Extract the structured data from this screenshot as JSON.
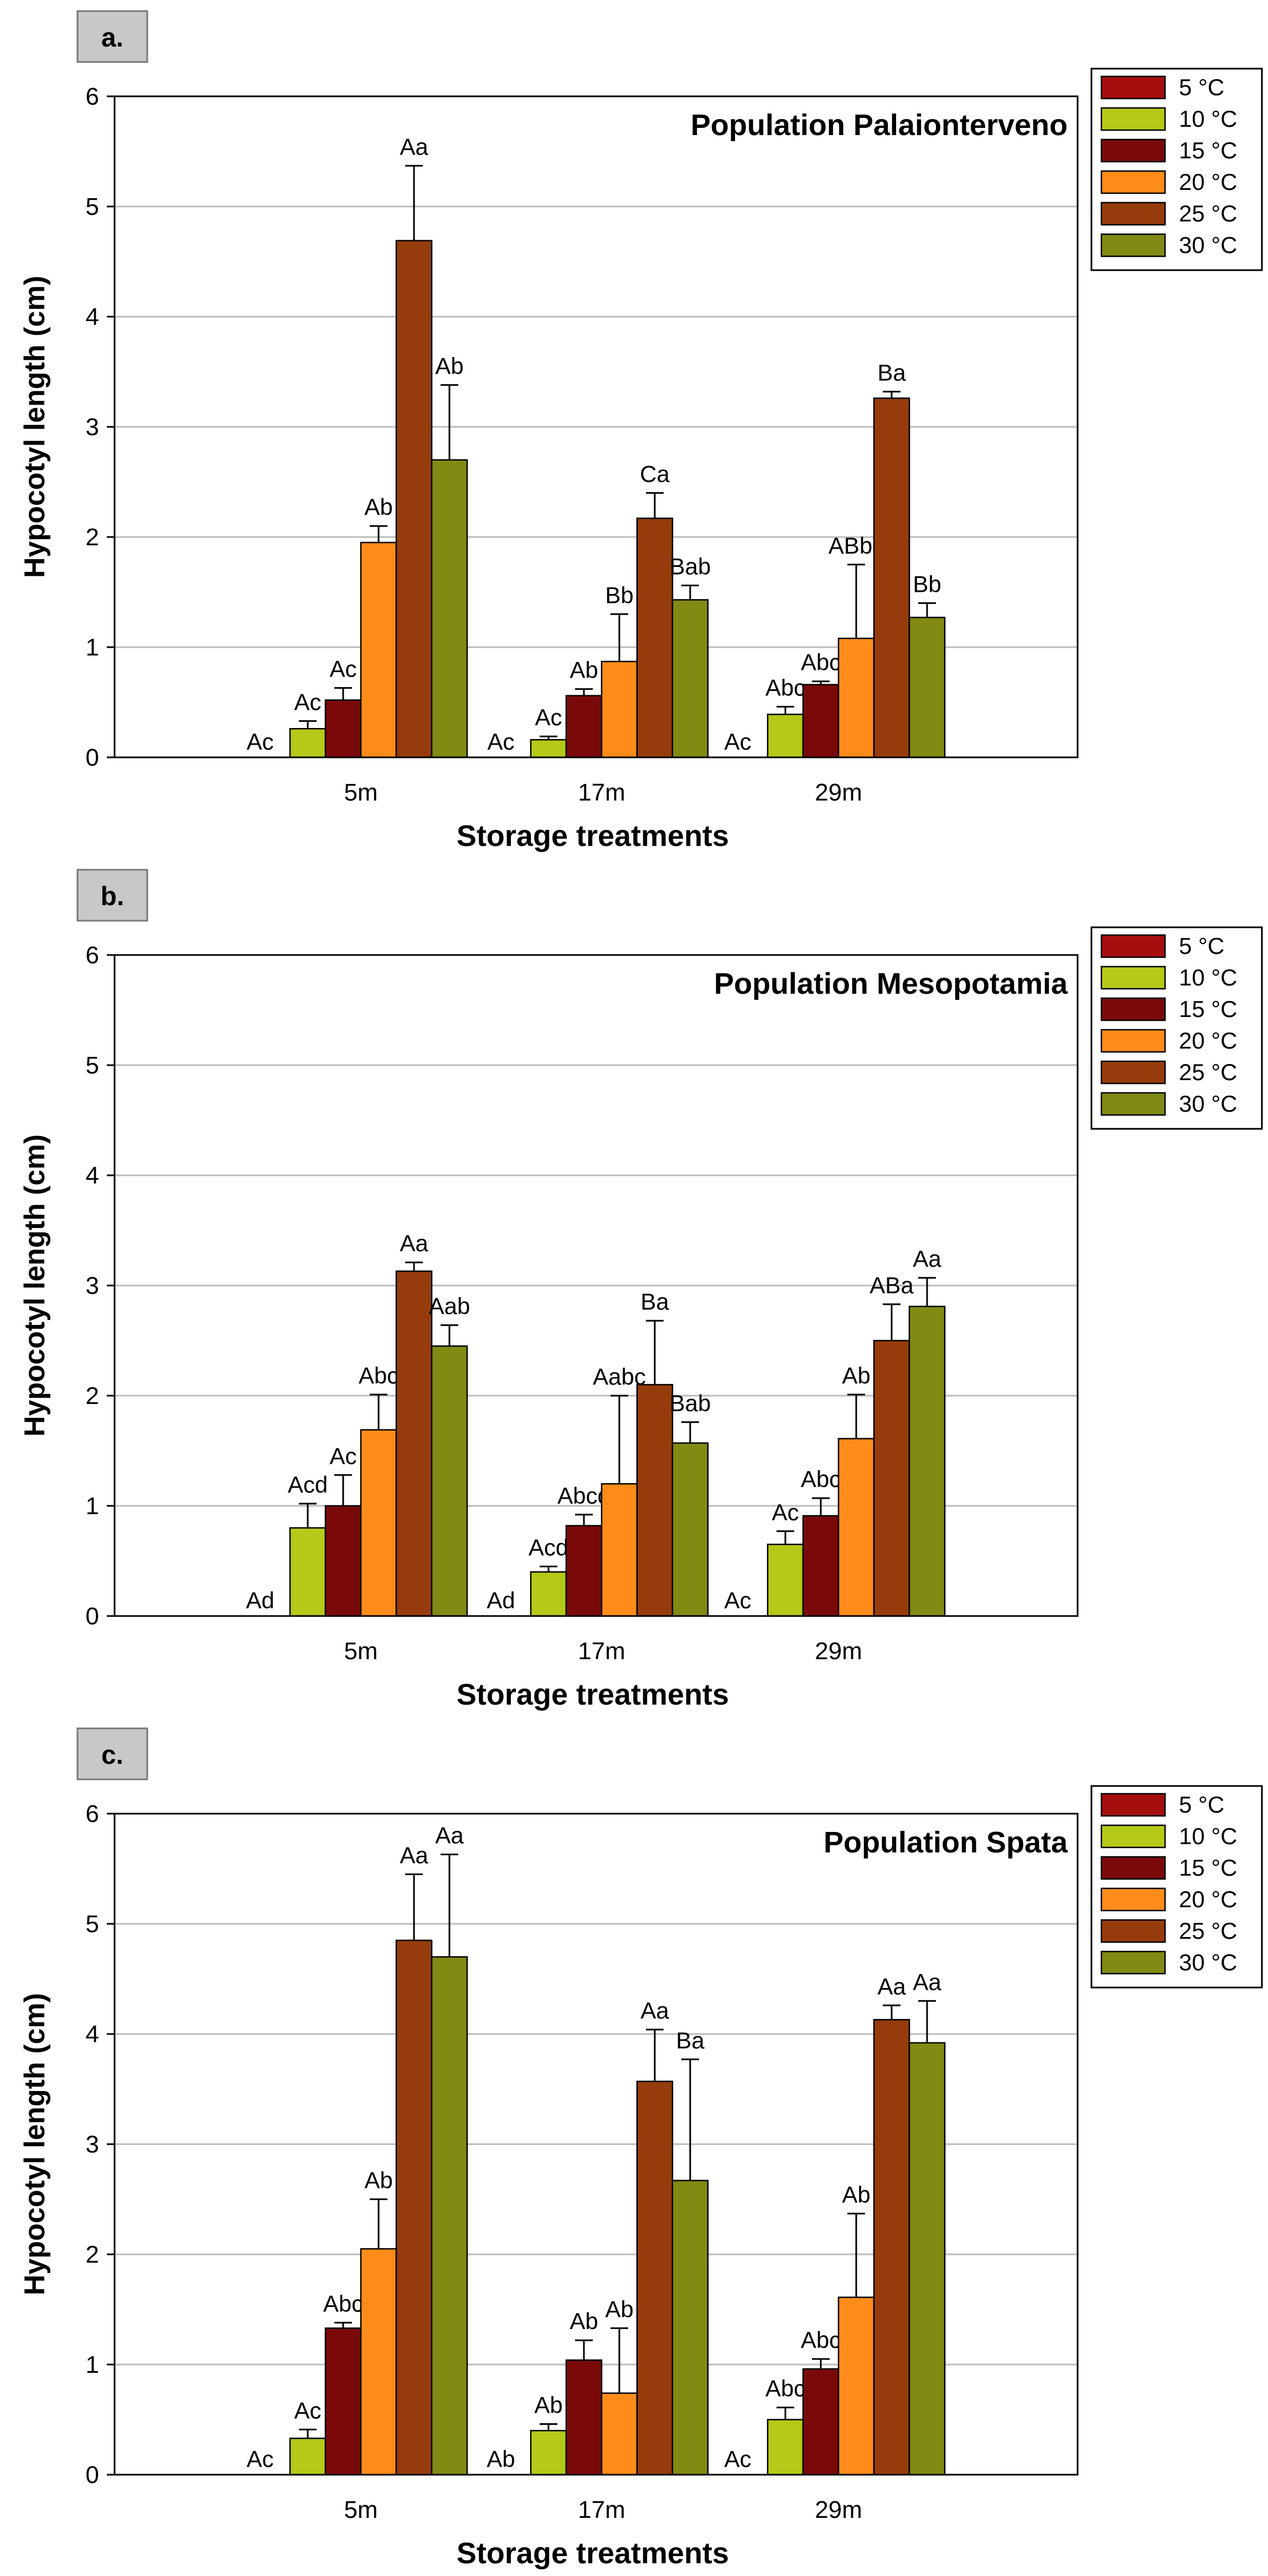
{
  "chart_data": [
    {
      "type": "bar",
      "panel_label": "a.",
      "title": "Population Palaionterveno",
      "xlabel": "Storage treatments",
      "ylabel": "Hypocotyl length (cm)",
      "ylim": [
        0,
        6
      ],
      "yticks": [
        "0",
        "1",
        "2",
        "3",
        "4",
        "5",
        "6"
      ],
      "grid": true,
      "legend_position": "top-right",
      "categories": [
        "5m",
        "17m",
        "29m"
      ],
      "series": [
        {
          "name": "5 °C",
          "color": "#a50e0e",
          "values": [
            0,
            0,
            0
          ],
          "errors": [
            0,
            0,
            0
          ],
          "labels": [
            "Ac",
            "Ac",
            "Ac"
          ]
        },
        {
          "name": "10 °C",
          "color": "#b5c918",
          "values": [
            0.26,
            0.16,
            0.39
          ],
          "errors": [
            0.07,
            0.03,
            0.07
          ],
          "labels": [
            "Ac",
            "Ac",
            "Abc"
          ]
        },
        {
          "name": "15 °C",
          "color": "#7a0a0a",
          "values": [
            0.52,
            0.56,
            0.66
          ],
          "errors": [
            0.11,
            0.06,
            0.03
          ],
          "labels": [
            "Ac",
            "Ab",
            "Abc"
          ]
        },
        {
          "name": "20 °C",
          "color": "#ff8c1a",
          "values": [
            1.95,
            0.87,
            1.08
          ],
          "errors": [
            0.15,
            0.43,
            0.67
          ],
          "labels": [
            "Ab",
            "Bb",
            "ABbc"
          ]
        },
        {
          "name": "25 °C",
          "color": "#963c0c",
          "values": [
            4.69,
            2.17,
            3.26
          ],
          "errors": [
            0.68,
            0.23,
            0.06
          ],
          "labels": [
            "Aa",
            "Ca",
            "Ba"
          ]
        },
        {
          "name": "30 °C",
          "color": "#818a12",
          "values": [
            2.7,
            1.43,
            1.27
          ],
          "errors": [
            0.68,
            0.13,
            0.13
          ],
          "labels": [
            "Ab",
            "Bab",
            "Bb"
          ]
        }
      ]
    },
    {
      "type": "bar",
      "panel_label": "b.",
      "title": "Population Mesopotamia",
      "xlabel": "Storage treatments",
      "ylabel": "Hypocotyl length (cm)",
      "ylim": [
        0,
        6
      ],
      "yticks": [
        "0",
        "1",
        "2",
        "3",
        "4",
        "5",
        "6"
      ],
      "grid": true,
      "legend_position": "top-right",
      "categories": [
        "5m",
        "17m",
        "29m"
      ],
      "series": [
        {
          "name": "5 °C",
          "color": "#a50e0e",
          "values": [
            0,
            0,
            0
          ],
          "errors": [
            0,
            0,
            0
          ],
          "labels": [
            "Ad",
            "Ad",
            "Ac"
          ]
        },
        {
          "name": "10 °C",
          "color": "#b5c918",
          "values": [
            0.8,
            0.4,
            0.65
          ],
          "errors": [
            0.22,
            0.05,
            0.12
          ],
          "labels": [
            "Acd",
            "Acd",
            "Ac"
          ]
        },
        {
          "name": "15 °C",
          "color": "#7a0a0a",
          "values": [
            1.0,
            0.82,
            0.91
          ],
          "errors": [
            0.28,
            0.1,
            0.16
          ],
          "labels": [
            "Ac",
            "Abcd",
            "Abc"
          ]
        },
        {
          "name": "20 °C",
          "color": "#ff8c1a",
          "values": [
            1.69,
            1.2,
            1.61
          ],
          "errors": [
            0.32,
            0.8,
            0.4
          ],
          "labels": [
            "Abc",
            "Aabc",
            "Ab"
          ]
        },
        {
          "name": "25 °C",
          "color": "#963c0c",
          "values": [
            3.13,
            2.1,
            2.5
          ],
          "errors": [
            0.08,
            0.58,
            0.33
          ],
          "labels": [
            "Aa",
            "Ba",
            "ABa"
          ]
        },
        {
          "name": "30 °C",
          "color": "#818a12",
          "values": [
            2.45,
            1.57,
            2.81
          ],
          "errors": [
            0.19,
            0.19,
            0.26
          ],
          "labels": [
            "Aab",
            "Bab",
            "Aa"
          ]
        }
      ]
    },
    {
      "type": "bar",
      "panel_label": "c.",
      "title": "Population Spata",
      "xlabel": "Storage treatments",
      "ylabel": "Hypocotyl length (cm)",
      "ylim": [
        0,
        6
      ],
      "yticks": [
        "0",
        "1",
        "2",
        "3",
        "4",
        "5",
        "6"
      ],
      "grid": true,
      "legend_position": "top-right",
      "categories": [
        "5m",
        "17m",
        "29m"
      ],
      "series": [
        {
          "name": "5 °C",
          "color": "#a50e0e",
          "values": [
            0,
            0,
            0
          ],
          "errors": [
            0,
            0,
            0
          ],
          "labels": [
            "Ac",
            "Ab",
            "Ac"
          ]
        },
        {
          "name": "10 °C",
          "color": "#b5c918",
          "values": [
            0.33,
            0.4,
            0.5
          ],
          "errors": [
            0.08,
            0.06,
            0.11
          ],
          "labels": [
            "Ac",
            "Ab",
            "Abc"
          ]
        },
        {
          "name": "15 °C",
          "color": "#7a0a0a",
          "values": [
            1.33,
            1.04,
            0.96
          ],
          "errors": [
            0.05,
            0.18,
            0.09
          ],
          "labels": [
            "Abc",
            "Ab",
            "Abc"
          ]
        },
        {
          "name": "20 °C",
          "color": "#ff8c1a",
          "values": [
            2.05,
            0.74,
            1.61
          ],
          "errors": [
            0.45,
            0.59,
            0.76
          ],
          "labels": [
            "Ab",
            "Ab",
            "Ab"
          ]
        },
        {
          "name": "25 °C",
          "color": "#963c0c",
          "values": [
            4.85,
            3.57,
            4.13
          ],
          "errors": [
            0.6,
            0.47,
            0.13
          ],
          "labels": [
            "Aa",
            "Aa",
            "Aa"
          ]
        },
        {
          "name": "30 °C",
          "color": "#818a12",
          "values": [
            4.7,
            2.67,
            3.92
          ],
          "errors": [
            0.93,
            1.1,
            0.38
          ],
          "labels": [
            "Aa",
            "Ba",
            "Aa"
          ]
        }
      ]
    }
  ]
}
